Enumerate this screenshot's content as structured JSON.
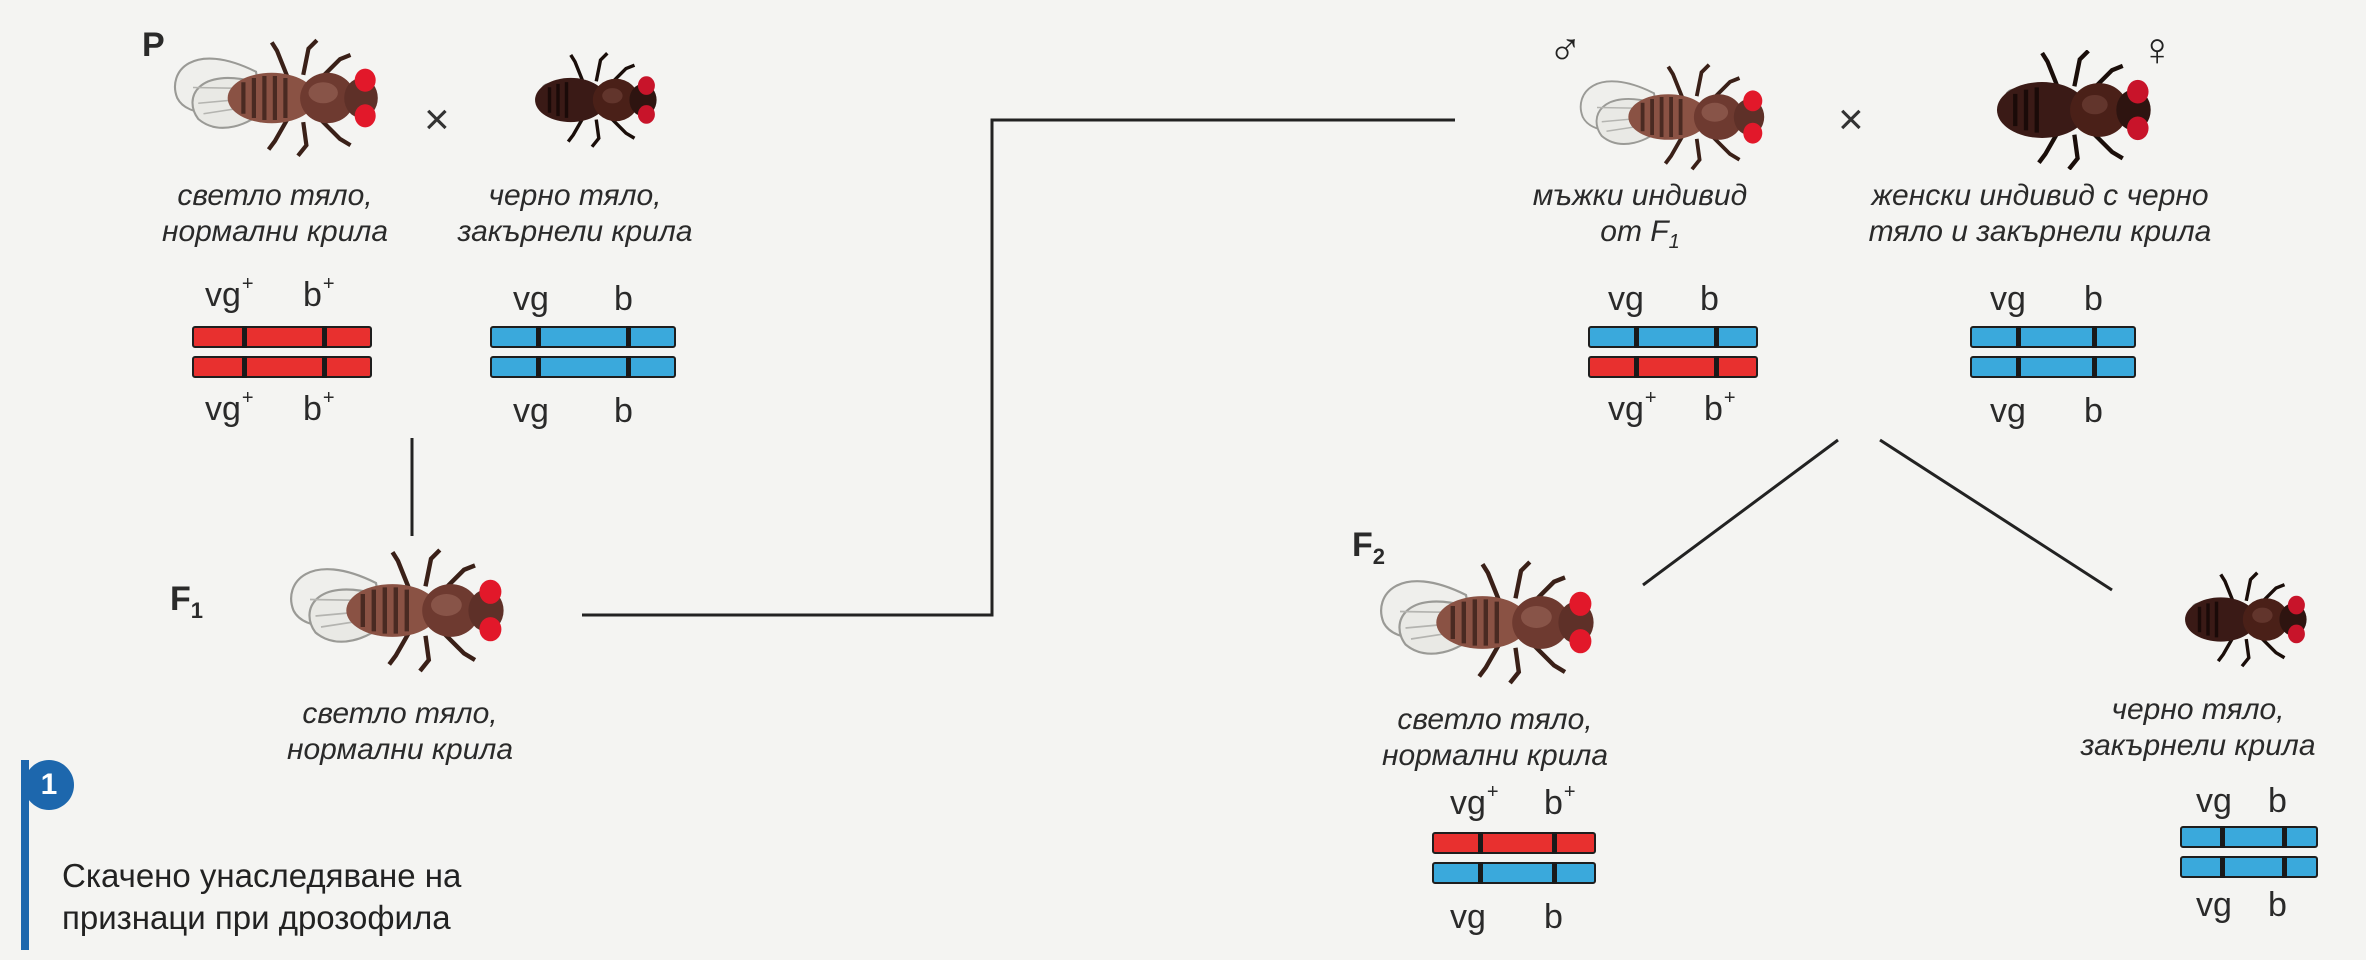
{
  "generations": {
    "p": "P",
    "f1_letter": "F",
    "f1_sub": "1",
    "f2_letter": "F",
    "f2_sub": "2"
  },
  "symbols": {
    "cross": "×",
    "male": "♂",
    "female": "♀"
  },
  "labels": {
    "p_left_line1": "светло тяло,",
    "p_left_line2": "нормални крила",
    "p_right_line1": "черно тяло,",
    "p_right_line2": "закърнели крила",
    "f1_line1": "светло тяло,",
    "f1_line2": "нормални крила",
    "male_line1": "мъжки индивид",
    "male_line2_prefix": "от F",
    "male_line2_sub": "1",
    "female_line1": "женски индивид с черно",
    "female_line2": "тяло и закърнели крила",
    "f2_left_line1": "светло тяло,",
    "f2_left_line2": "нормални крила",
    "f2_right_line1": "черно тяло,",
    "f2_right_line2": "закърнели крила"
  },
  "genes": {
    "vg": "vg",
    "b": "b",
    "plus": "+"
  },
  "caption": {
    "badge": "1",
    "line1": "Скачено унаследяване на",
    "line2": "признаци при дрозофила"
  },
  "colors": {
    "dominant_chromosome": "#e8302f",
    "recessive_chromosome": "#3aa9dc",
    "accent": "#1d67ad"
  },
  "icons": [
    "fly-light-normal-wings",
    "fly-black-vestigial-wings"
  ]
}
